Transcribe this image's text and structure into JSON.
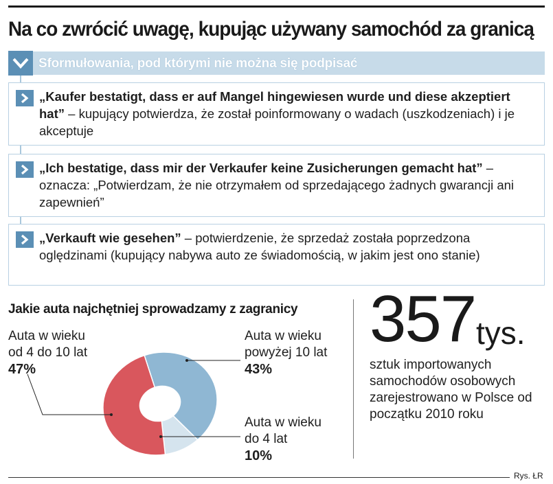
{
  "title": "Na co zwrócić uwagę, kupując używany samochód za granicą",
  "section_header": "Sformułowania, pod którymi nie można się podpisać",
  "phrases": [
    {
      "quote": "„Kaufer bestatigt, dass er auf Mangel hingewiesen wurde und diese akzeptiert hat”",
      "explanation": " – kupujący potwierdza, że został poinformowany o wadach (uszkodzeniach) i je akceptuje"
    },
    {
      "quote": "„Ich bestatige, dass mir der Verkaufer keine Zusicherungen gemacht hat”",
      "explanation": " – oznacza: „Potwierdzam, że nie otrzymałem od sprzedającego żadnych gwarancji ani zapewnień”"
    },
    {
      "quote": "„Verkauft wie gesehen”",
      "explanation": " – potwierdzenie, że sprzedaż została poprzedzona oględzinami (kupujący nabywa auto ze świadomością, w jakim jest ono stanie)"
    }
  ],
  "stat": {
    "number": "357",
    "unit": "tys.",
    "description": "sztuk importowanych samochodów osobowych zarejestrowano w Polsce od początku 2010 roku"
  },
  "credit": "Rys. ŁR",
  "colors": {
    "accent_dark": "#5b8fb5",
    "band": "#c7dbe9",
    "slice_red": "#d9575d",
    "slice_blue": "#8fb7d3",
    "slice_light": "#d5e4ee"
  },
  "icons": {
    "chevron": "chevron-right-icon",
    "header_chevron": "chevron-down-icon"
  },
  "chart_data": {
    "type": "pie",
    "variant": "donut",
    "title": "Jakie auta najchętniej sprowadzamy z zagranicy",
    "slices": [
      {
        "label_line1": "Auta w wieku",
        "label_line2": "od 4 do 10 lat",
        "value": 47,
        "value_label": "47%",
        "color": "#d9575d"
      },
      {
        "label_line1": "Auta w wieku",
        "label_line2": "powyżej 10 lat",
        "value": 43,
        "value_label": "43%",
        "color": "#8fb7d3"
      },
      {
        "label_line1": "Auta w wieku",
        "label_line2": "do 4 lat",
        "value": 10,
        "value_label": "10%",
        "color": "#d5e4ee"
      }
    ]
  }
}
